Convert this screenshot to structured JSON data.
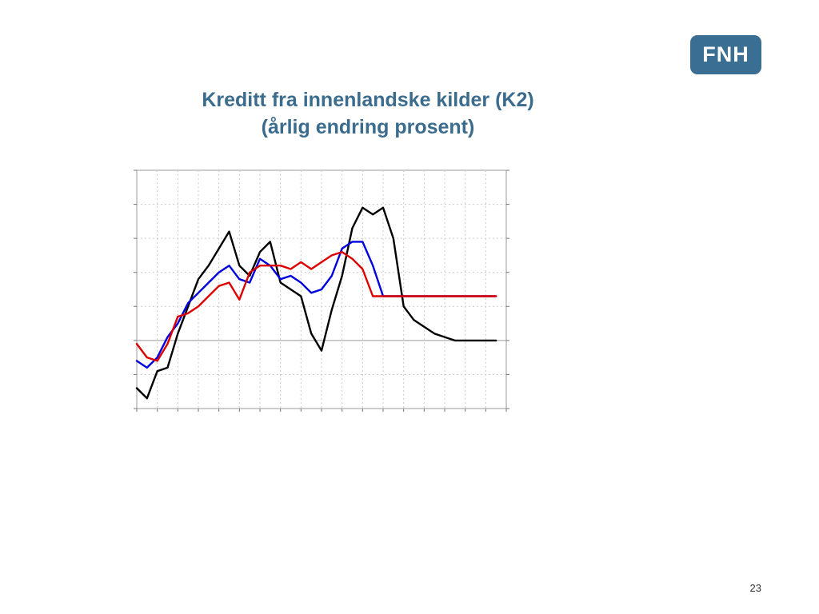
{
  "logo": {
    "text": "FNH",
    "color": "#3a6f93"
  },
  "title": {
    "line1": "Kreditt fra innenlandske kilder (K2)",
    "line2": "(årlig endring prosent)",
    "color": "#3b6c8e"
  },
  "page_number": "23",
  "chart_data": {
    "type": "line",
    "title": "Kreditt fra innenlandske kilder (K2)",
    "subtitle": "(årlig endring prosent)",
    "xlabel": "",
    "ylabel": "",
    "x_ticks": 18,
    "y_ticks": 7,
    "ylim": [
      -2,
      5
    ],
    "grid": true,
    "legend": "none",
    "x": [
      0,
      0.5,
      1,
      1.5,
      2,
      2.5,
      3,
      3.5,
      4,
      4.5,
      5,
      5.5,
      6,
      6.5,
      7,
      7.5,
      8,
      8.5,
      9,
      9.5,
      10,
      10.5,
      11,
      11.5,
      12,
      12.5,
      13,
      13.5,
      14,
      14.5,
      15,
      15.5,
      16,
      16.5,
      17,
      17.5
    ],
    "series": [
      {
        "color": "#000000",
        "values": [
          -1.4,
          -1.7,
          -0.9,
          -0.8,
          0.2,
          1.0,
          1.8,
          2.2,
          2.7,
          3.2,
          2.2,
          1.9,
          2.6,
          2.9,
          1.7,
          1.5,
          1.3,
          0.2,
          -0.3,
          0.9,
          1.9,
          3.3,
          3.9,
          3.7,
          3.9,
          3.0,
          1.0,
          0.6,
          0.4,
          0.2,
          0.1,
          0,
          0,
          0,
          0,
          0
        ]
      },
      {
        "color": "#0000dd",
        "values": [
          -0.6,
          -0.8,
          -0.5,
          0.1,
          0.5,
          1.1,
          1.4,
          1.7,
          2.0,
          2.2,
          1.8,
          1.7,
          2.4,
          2.2,
          1.8,
          1.9,
          1.7,
          1.4,
          1.5,
          1.9,
          2.7,
          2.9,
          2.9,
          2.2,
          1.3,
          1.3,
          1.3,
          1.3,
          1.3,
          1.3,
          1.3,
          1.3,
          1.3,
          1.3,
          1.3,
          1.3
        ]
      },
      {
        "color": "#dd0000",
        "values": [
          -0.1,
          -0.5,
          -0.6,
          -0.1,
          0.7,
          0.8,
          1.0,
          1.3,
          1.6,
          1.7,
          1.2,
          2.0,
          2.2,
          2.2,
          2.2,
          2.1,
          2.3,
          2.1,
          2.3,
          2.5,
          2.6,
          2.4,
          2.1,
          1.3,
          1.3,
          1.3,
          1.3,
          1.3,
          1.3,
          1.3,
          1.3,
          1.3,
          1.3,
          1.3,
          1.3,
          1.3
        ]
      }
    ]
  }
}
